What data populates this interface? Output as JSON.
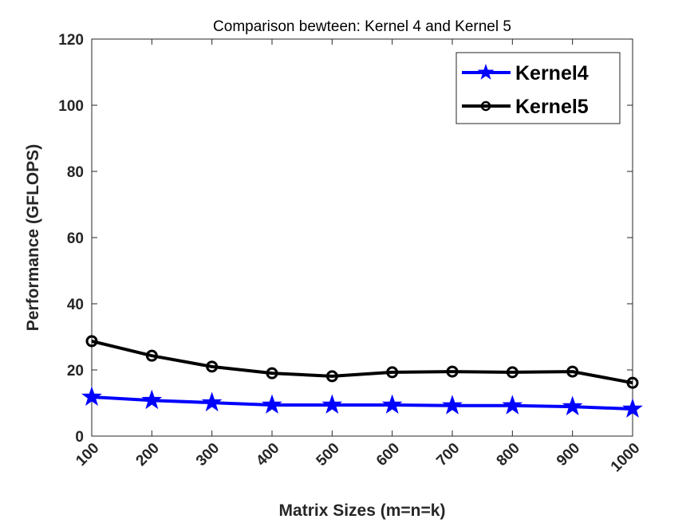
{
  "chart_data": {
    "type": "line",
    "title": "Comparison bewteen: Kernel 4 and Kernel 5",
    "xlabel": "Matrix Sizes (m=n=k)",
    "ylabel": "Performance (GFLOPS)",
    "categories": [
      "100",
      "200",
      "300",
      "400",
      "500",
      "600",
      "700",
      "800",
      "900",
      "1000"
    ],
    "x": [
      100,
      200,
      300,
      400,
      500,
      600,
      700,
      800,
      900,
      1000
    ],
    "ylim": [
      0,
      120
    ],
    "yticks": [
      0,
      20,
      40,
      60,
      80,
      100,
      120
    ],
    "yticklabels": [
      "0",
      "20",
      "40",
      "60",
      "80",
      "100",
      "120"
    ],
    "grid": false,
    "legend_position": "top-right",
    "series": [
      {
        "name": "Kernel4",
        "color": "#0000ff",
        "marker": "star",
        "values": [
          11.8,
          10.8,
          10.1,
          9.4,
          9.4,
          9.4,
          9.2,
          9.2,
          8.9,
          8.2
        ]
      },
      {
        "name": "Kernel5",
        "color": "#000000",
        "marker": "circle",
        "values": [
          28.7,
          24.3,
          21.0,
          19.0,
          18.1,
          19.3,
          19.5,
          19.3,
          19.5,
          16.1
        ]
      }
    ]
  }
}
